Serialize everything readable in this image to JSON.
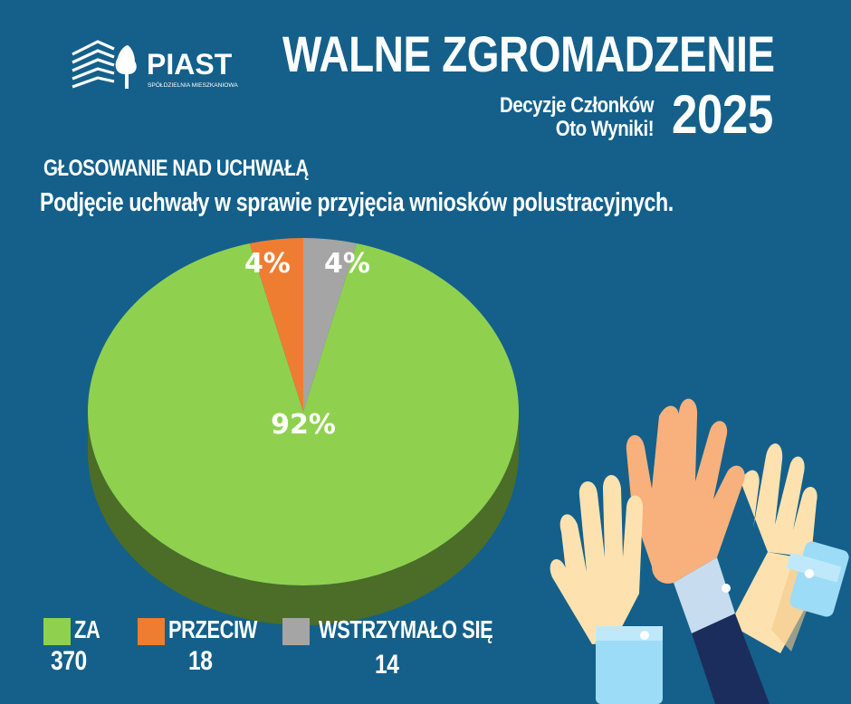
{
  "header": {
    "logo_text": "PIAST",
    "logo_subtext": "SPÓŁDZIELNIA MIESZKANIOWA",
    "title": "WALNE ZGROMADZENIE",
    "subtitle_line1": "Decyzje Członków",
    "subtitle_line2": "Oto Wyniki!",
    "year": "2025"
  },
  "section_label": "GŁOSOWANIE NAD UCHWAŁĄ",
  "question": "Podjęcie uchwały w sprawie przyjęcia wniosków polustracyjnych.",
  "chart_data": {
    "type": "pie",
    "slices": [
      {
        "label": "ZA",
        "count": "370",
        "value": 92,
        "value_label": "92%",
        "color": "#8fd14f",
        "side_color": "#4b6d28"
      },
      {
        "label": "PRZECIW",
        "count": "18",
        "value": 4,
        "value_label": "4%",
        "color": "#ee7d31",
        "side_color": "#8a4518"
      },
      {
        "label": "WSTRZYMAŁO SIĘ",
        "count": "14",
        "value": 4,
        "value_label": "4%",
        "color": "#a5a5a5",
        "side_color": "#5f5f5f"
      }
    ]
  },
  "colors": {
    "background": "#14608a",
    "text": "#ffffff"
  },
  "illustration": {
    "icon": "raised-hands-illustration"
  }
}
